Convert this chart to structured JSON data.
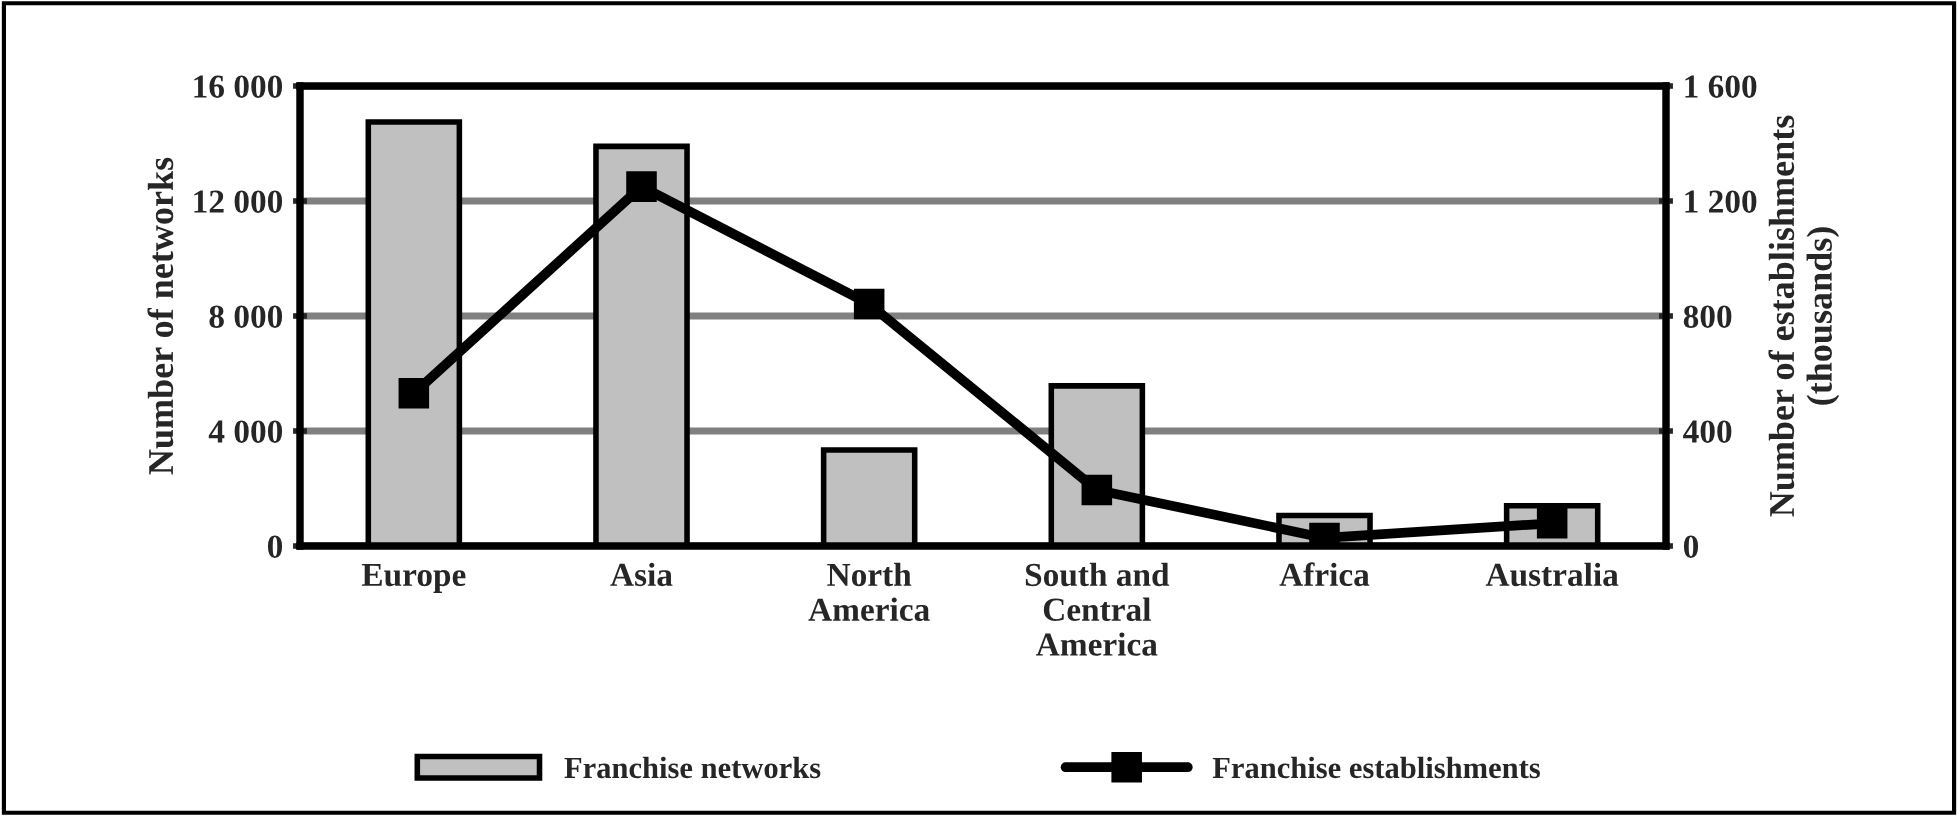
{
  "chart_data": {
    "type": "bar",
    "categories": [
      "Europe",
      "Asia",
      "North\nAmerica",
      "South and\nCentral\nAmerica",
      "Africa",
      "Australia"
    ],
    "series": [
      {
        "name": "Franchise networks",
        "color": "#c0c0c0",
        "values": [
          14750,
          13900,
          3340,
          5570,
          1060,
          1400
        ]
      },
      {
        "name": "Franchise establishments",
        "type": "line",
        "axis": "y2",
        "color": "#000000",
        "marker": "square",
        "values": [
          531,
          1250,
          842,
          195,
          28,
          79
        ]
      }
    ],
    "ylabel": "Number of networks",
    "y2label": "Number of establishments\n(thousands)",
    "ylim": [
      0,
      16000
    ],
    "yticks": [
      {
        "value": 0,
        "label": "0"
      },
      {
        "value": 4000,
        "label": "4 000"
      },
      {
        "value": 8000,
        "label": "8 000"
      },
      {
        "value": 12000,
        "label": "12 000"
      },
      {
        "value": 16000,
        "label": "16 000"
      }
    ],
    "y2lim": [
      0,
      1600
    ],
    "y2ticks": [
      {
        "value": 0,
        "label": "0"
      },
      {
        "value": 400,
        "label": "400"
      },
      {
        "value": 800,
        "label": "800"
      },
      {
        "value": 1200,
        "label": "1 200"
      },
      {
        "value": 1600,
        "label": "1 600"
      }
    ],
    "grid": "y",
    "legend": "bottom"
  }
}
